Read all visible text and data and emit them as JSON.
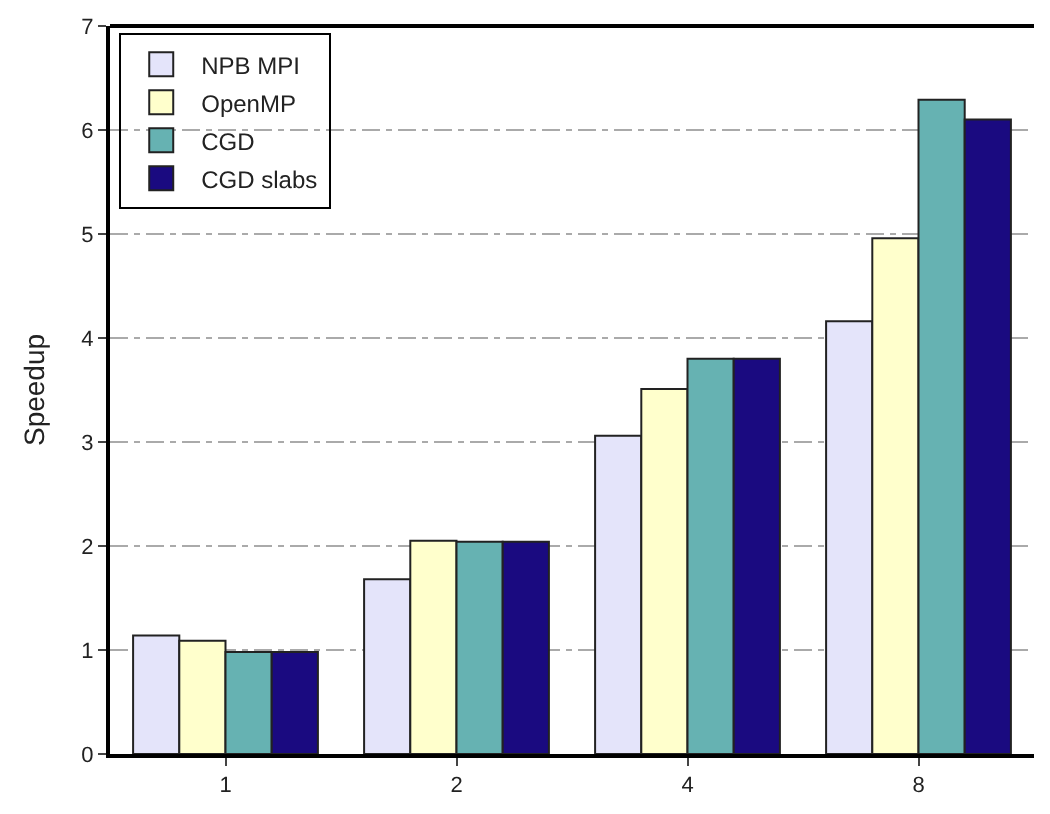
{
  "chart_data": {
    "type": "bar",
    "ylabel": "Speedup",
    "categories": [
      "1",
      "2",
      "4",
      "8"
    ],
    "series": [
      {
        "name": "NPB MPI",
        "color": "#e4e4fa",
        "values": [
          1.14,
          1.68,
          3.06,
          4.16
        ]
      },
      {
        "name": "OpenMP",
        "color": "#ffffcc",
        "values": [
          1.09,
          2.05,
          3.51,
          4.96
        ]
      },
      {
        "name": "CGD",
        "color": "#66b2b2",
        "values": [
          0.98,
          2.04,
          3.8,
          6.29
        ]
      },
      {
        "name": "CGD slabs",
        "color": "#1a0a80",
        "values": [
          0.98,
          2.04,
          3.8,
          6.1
        ]
      }
    ],
    "ylim": [
      0,
      7
    ],
    "yticks": [
      0,
      1,
      2,
      3,
      4,
      5,
      6,
      7
    ],
    "grid": "y",
    "legend": "top left"
  }
}
